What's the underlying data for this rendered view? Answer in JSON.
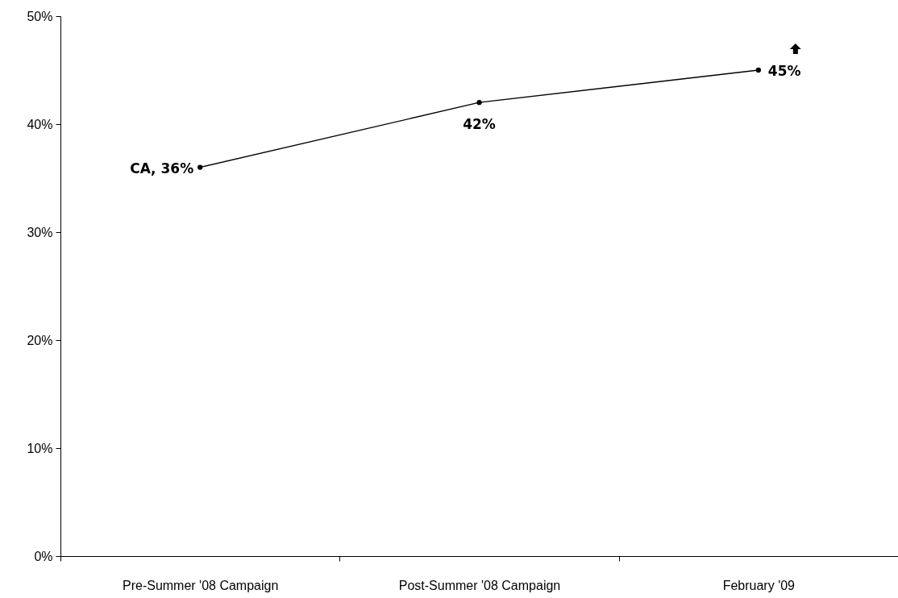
{
  "chart_data": {
    "type": "line",
    "categories": [
      "Pre-Summer '08 Campaign",
      "Post-Summer '08 Campaign",
      "February '09"
    ],
    "series": [
      {
        "color": "#000000",
        "values": [
          36,
          42,
          45
        ],
        "value_labels": [
          "CA, 36%",
          "42%",
          "45%"
        ]
      }
    ],
    "ylim": [
      0,
      50
    ],
    "yticks": [
      {
        "value": 0,
        "label": "0%"
      },
      {
        "value": 10,
        "label": "10%"
      },
      {
        "value": 20,
        "label": "20%"
      },
      {
        "value": 30,
        "label": "30%"
      },
      {
        "value": 40,
        "label": "40%"
      },
      {
        "value": 50,
        "label": "50%"
      }
    ],
    "grid": false,
    "marker": "circle",
    "line_style": "solid"
  }
}
